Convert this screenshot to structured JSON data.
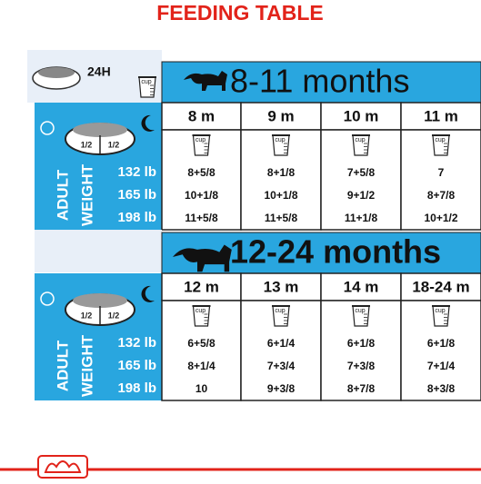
{
  "title": "FEEDING TABLE",
  "top_label": "24H",
  "cup": "cup",
  "sections": [
    {
      "title": "8-11 months",
      "half_labels": [
        "1/2",
        "1/2"
      ],
      "axis_label": [
        "ADULT",
        "WEIGHT"
      ],
      "columns": [
        "8 m",
        "9 m",
        "10 m",
        "11 m"
      ],
      "weights": [
        "132 lb",
        "165 lb",
        "198 lb"
      ],
      "rows": [
        [
          "8+5/8",
          "8+1/8",
          "7+5/8",
          "7"
        ],
        [
          "10+1/8",
          "10+1/8",
          "9+1/2",
          "8+7/8"
        ],
        [
          "11+5/8",
          "11+5/8",
          "11+1/8",
          "10+1/2"
        ]
      ]
    },
    {
      "title": "12-24 months",
      "half_labels": [
        "1/2",
        "1/2"
      ],
      "axis_label": [
        "ADULT",
        "WEIGHT"
      ],
      "columns": [
        "12 m",
        "13 m",
        "14 m",
        "18-24 m"
      ],
      "weights": [
        "132 lb",
        "165 lb",
        "198 lb"
      ],
      "rows": [
        [
          "6+5/8",
          "6+1/4",
          "6+1/8",
          "6+1/8"
        ],
        [
          "8+1/4",
          "7+3/4",
          "7+3/8",
          "7+1/4"
        ],
        [
          "10",
          "9+3/8",
          "8+7/8",
          "8+3/8"
        ]
      ]
    }
  ]
}
